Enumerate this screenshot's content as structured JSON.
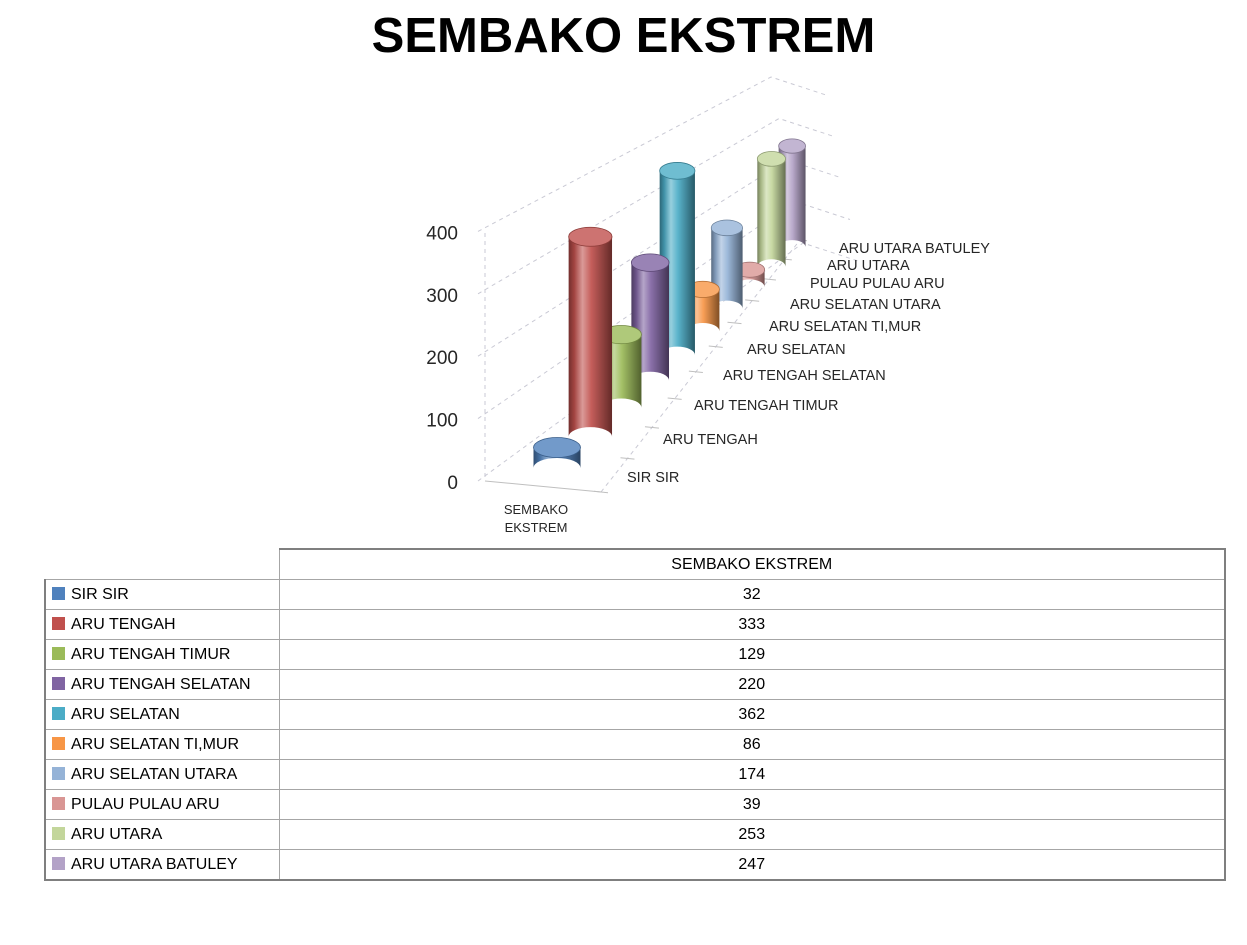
{
  "title": "SEMBAKO EKSTREM",
  "chart_data": {
    "type": "bar",
    "subtype": "3d-cylinder",
    "title": "SEMBAKO EKSTREM",
    "x_category_label": "SEMBAKO EKSTREM",
    "categories": [
      "SIR SIR",
      "ARU TENGAH",
      "ARU TENGAH TIMUR",
      "ARU TENGAH SELATAN",
      "ARU SELATAN",
      "ARU SELATAN TI,MUR",
      "ARU SELATAN UTARA",
      "PULAU PULAU ARU",
      "ARU UTARA",
      "ARU UTARA BATULEY"
    ],
    "values": [
      32,
      333,
      129,
      220,
      362,
      86,
      174,
      39,
      253,
      247
    ],
    "colors": [
      "#4F81BD",
      "#C0504D",
      "#9BBB59",
      "#8064A2",
      "#4BACC6",
      "#F79646",
      "#95B3D7",
      "#D99694",
      "#C3D69B",
      "#B3A2C7"
    ],
    "ylabel": "",
    "xlabel": "SEMBAKO EKSTREM",
    "ylim": [
      0,
      400
    ],
    "yticks": [
      0,
      100,
      200,
      300,
      400
    ],
    "grid": true,
    "legend_position": "table-below"
  },
  "table": {
    "header": "SEMBAKO EKSTREM",
    "rows": [
      {
        "label": "SIR SIR",
        "value": "32",
        "color": "#4F81BD"
      },
      {
        "label": "ARU TENGAH",
        "value": "333",
        "color": "#C0504D"
      },
      {
        "label": "ARU TENGAH TIMUR",
        "value": "129",
        "color": "#9BBB59"
      },
      {
        "label": "ARU TENGAH SELATAN",
        "value": "220",
        "color": "#8064A2"
      },
      {
        "label": "ARU SELATAN",
        "value": "362",
        "color": "#4BACC6"
      },
      {
        "label": "ARU SELATAN TI,MUR",
        "value": "86",
        "color": "#F79646"
      },
      {
        "label": "ARU SELATAN UTARA",
        "value": "174",
        "color": "#95B3D7"
      },
      {
        "label": "PULAU PULAU ARU",
        "value": "39",
        "color": "#D99694"
      },
      {
        "label": "ARU UTARA",
        "value": "253",
        "color": "#C3D69B"
      },
      {
        "label": "ARU UTARA BATULEY",
        "value": "247",
        "color": "#B3A2C7"
      }
    ]
  }
}
